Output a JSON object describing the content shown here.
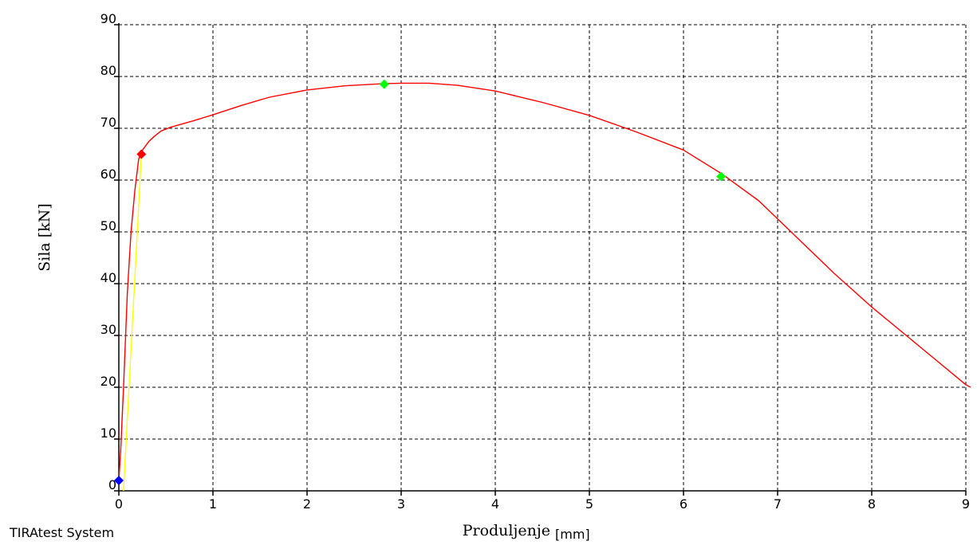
{
  "chart_data": {
    "type": "line",
    "xlabel": "Produljenje",
    "xunit": "[mm]",
    "ylabel": "Sila [kN]",
    "xlim": [
      0,
      9
    ],
    "ylim": [
      0,
      90
    ],
    "xticks": [
      0,
      1,
      2,
      3,
      4,
      5,
      6,
      7,
      8,
      9
    ],
    "yticks": [
      0,
      10,
      20,
      30,
      40,
      50,
      60,
      70,
      80,
      90
    ],
    "grid": true,
    "series": [
      {
        "color": "#ff0000",
        "points": [
          [
            0.0,
            2.0
          ],
          [
            0.02,
            8.0
          ],
          [
            0.05,
            20.0
          ],
          [
            0.09,
            38.0
          ],
          [
            0.13,
            50.0
          ],
          [
            0.17,
            58.0
          ],
          [
            0.21,
            64.0
          ],
          [
            0.24,
            65.5
          ],
          [
            0.28,
            66.5
          ],
          [
            0.32,
            67.5
          ],
          [
            0.38,
            68.5
          ],
          [
            0.45,
            69.5
          ],
          [
            0.55,
            70.2
          ],
          [
            0.8,
            71.5
          ],
          [
            1.0,
            72.6
          ],
          [
            1.3,
            74.4
          ],
          [
            1.6,
            76.0
          ],
          [
            2.0,
            77.4
          ],
          [
            2.4,
            78.2
          ],
          [
            2.8,
            78.6
          ],
          [
            3.0,
            78.7
          ],
          [
            3.3,
            78.7
          ],
          [
            3.6,
            78.3
          ],
          [
            4.0,
            77.2
          ],
          [
            4.5,
            75.0
          ],
          [
            5.0,
            72.5
          ],
          [
            5.5,
            69.3
          ],
          [
            6.0,
            65.8
          ],
          [
            6.4,
            61.3
          ],
          [
            6.8,
            56.0
          ],
          [
            7.2,
            49.0
          ],
          [
            7.6,
            42.0
          ],
          [
            8.0,
            35.5
          ],
          [
            8.5,
            28.0
          ],
          [
            9.0,
            20.5
          ],
          [
            9.05,
            20.0
          ]
        ]
      },
      {
        "color": "#ffff00",
        "points": [
          [
            0.05,
            0.0
          ],
          [
            0.24,
            65.0
          ]
        ]
      }
    ],
    "markers": [
      {
        "x": 0.0,
        "y": 2.0,
        "color": "#0000ff"
      },
      {
        "x": 0.24,
        "y": 65.0,
        "color": "#ff0000"
      },
      {
        "x": 2.82,
        "y": 78.5,
        "color": "#00ff00"
      },
      {
        "x": 6.4,
        "y": 60.7,
        "color": "#00ff00"
      }
    ]
  },
  "footer": {
    "text": "TIRAtest System"
  }
}
